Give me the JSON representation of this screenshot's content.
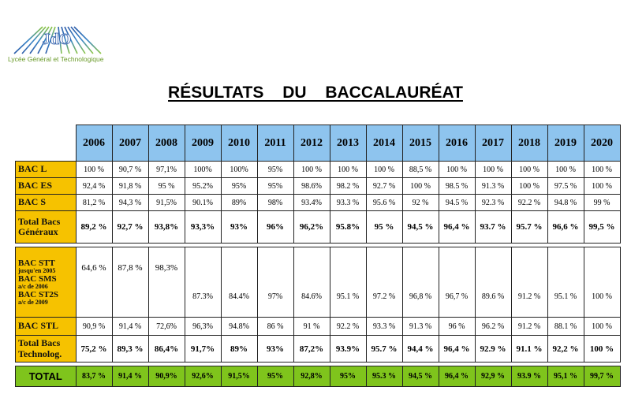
{
  "logo": {
    "caption": "Lycée Général et Technologique",
    "mark_text": "JdO"
  },
  "title": "RÉSULTATS DU BACCALAURÉAT",
  "years": [
    "2006",
    "2007",
    "2008",
    "2009",
    "2010",
    "2011",
    "2012",
    "2013",
    "2014",
    "2015",
    "2016",
    "2017",
    "2018",
    "2019",
    "2020"
  ],
  "rows": {
    "bac_l": {
      "label": "BAC L",
      "values": [
        "100 %",
        "90,7 %",
        "97,1%",
        "100%",
        "100%",
        "95%",
        "100 %",
        "100 %",
        "100 %",
        "88,5 %",
        "100 %",
        "100 %",
        "100 %",
        "100 %",
        "100 %"
      ]
    },
    "bac_es": {
      "label": "BAC ES",
      "values": [
        "92,4 %",
        "91,8 %",
        "95 %",
        "95.2%",
        "95%",
        "95%",
        "98.6%",
        "98.2 %",
        "92.7 %",
        "100 %",
        "98.5 %",
        "91.3 %",
        "100 %",
        "97.5 %",
        "100 %"
      ]
    },
    "bac_s": {
      "label": "BAC S",
      "values": [
        "81,2 %",
        "94,3 %",
        "91,5%",
        "90.1%",
        "89%",
        "98%",
        "93.4%",
        "93.3 %",
        "95.6 %",
        "92 %",
        "94.5 %",
        "92.3 %",
        "92.2 %",
        "94.8 %",
        "99 %"
      ]
    },
    "total_gen": {
      "label_line1": "Total Bacs",
      "label_line2": "Généraux",
      "values": [
        "89,2 %",
        "92,7 %",
        "93,8%",
        "93,3%",
        "93%",
        "96%",
        "96,2%",
        "95.8%",
        "95 %",
        "94,5 %",
        "96,4 %",
        "93.7 %",
        "95.7 %",
        "96,6 %",
        "99,5 %"
      ]
    },
    "stt": {
      "label_stt": "BAC STT",
      "label_stt_note": "jusqu'en 2005",
      "label_sms": "BAC SMS",
      "label_sms_note": "a/c de 2006",
      "label_st2s": "BAC ST2S",
      "label_st2s_note": "a/c de 2009",
      "values_early": [
        "64,6 %",
        "87,8 %",
        "98,3%"
      ],
      "values_late": [
        "87.3%",
        "84.4%",
        "97%",
        "84.6%",
        "95.1 %",
        "97.2 %",
        "96,8 %",
        "96,7 %",
        "89.6 %",
        "91.2 %",
        "95.1 %",
        "100 %"
      ]
    },
    "stl": {
      "label": "BAC STL",
      "values": [
        "90,9 %",
        "91,4 %",
        "72,6%",
        "96,3%",
        "94.8%",
        "86 %",
        "91 %",
        "92.2 %",
        "93.3 %",
        "91.3 %",
        "96 %",
        "96.2 %",
        "91.2 %",
        "88.1 %",
        "100 %"
      ]
    },
    "total_tech": {
      "label_line1": "Total Bacs",
      "label_line2": "Technolog.",
      "values": [
        "75,2 %",
        "89,3 %",
        "86,4%",
        "91,7%",
        "89%",
        "93%",
        "87,2%",
        "93.9%",
        "95.7 %",
        "94,4 %",
        "96,4 %",
        "92.9 %",
        "91.1 %",
        "92,2 %",
        "100 %"
      ]
    },
    "total": {
      "label": "TOTAL",
      "values": [
        "83,7 %",
        "91,4 %",
        "90,9%",
        "92,6%",
        "91,5%",
        "95%",
        "92,8%",
        "95%",
        "95.3 %",
        "94,5 %",
        "96,4 %",
        "92,9 %",
        "93.9 %",
        "95,1 %",
        "99,7 %"
      ]
    }
  },
  "colors": {
    "header_blue": "#8ec4ee",
    "label_yellow": "#f6c200",
    "total_green": "#7fc41c",
    "logo_green": "#6a9a2a",
    "logo_blue": "#2a5aa8"
  }
}
